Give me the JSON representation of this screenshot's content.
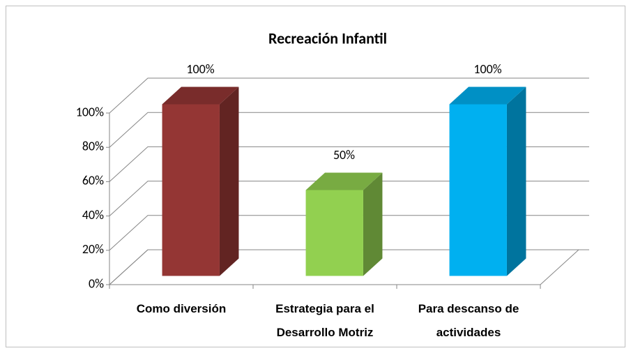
{
  "chart_data": {
    "type": "bar3d",
    "title": "Recreación Infantil",
    "categories": [
      "Como diversión",
      "Estrategia para el Desarrollo Motriz",
      "Para descanso de actividades"
    ],
    "values": [
      100,
      50,
      100
    ],
    "value_labels": [
      "100%",
      "50%",
      "100%"
    ],
    "colors": [
      "#943634",
      "#92d050",
      "#00b0f0"
    ],
    "ylim": [
      0,
      100
    ],
    "yticks": [
      {
        "value": 0,
        "label": "0%"
      },
      {
        "value": 20,
        "label": "20%"
      },
      {
        "value": 40,
        "label": "40%"
      },
      {
        "value": 60,
        "label": "60%"
      },
      {
        "value": 80,
        "label": "80%"
      },
      {
        "value": 100,
        "label": "100%"
      }
    ],
    "grid": true
  }
}
